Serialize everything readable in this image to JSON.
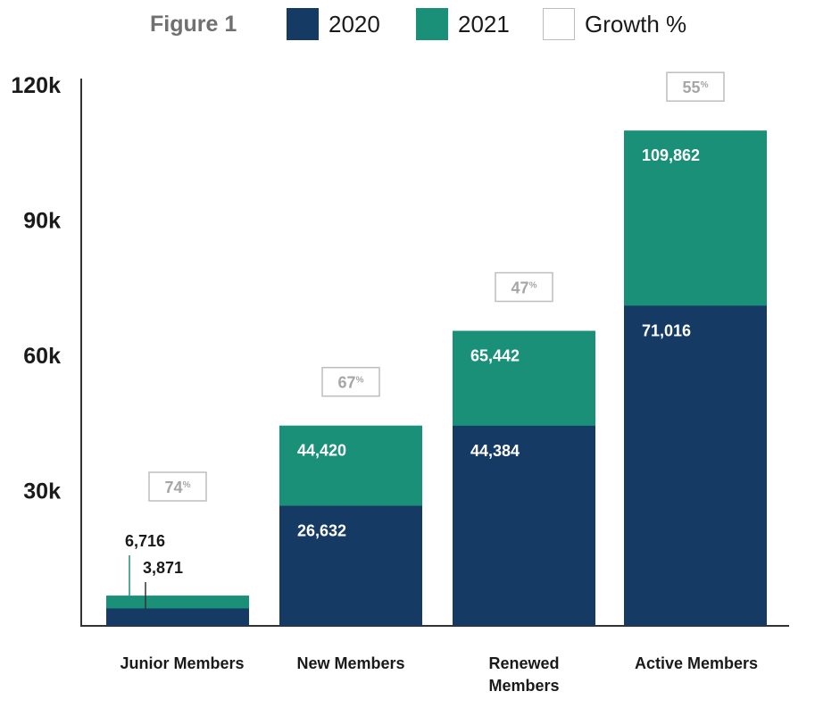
{
  "legend": {
    "figure_label": "Figure 1",
    "items": [
      {
        "label": "2020",
        "color": "#153a63"
      },
      {
        "label": "2021",
        "color": "#1a9079"
      },
      {
        "label": "Growth %",
        "color": "#ffffff"
      }
    ]
  },
  "chart_data": {
    "type": "bar",
    "title": "Figure 1",
    "xlabel": "",
    "ylabel": "",
    "ylim": [
      0,
      120000
    ],
    "yticks": [
      30000,
      60000,
      90000,
      120000
    ],
    "ytick_labels": [
      "30k",
      "60k",
      "90k",
      "120k"
    ],
    "categories": [
      "Junior Members",
      "New Members",
      "Renewed\nMembers",
      "Active Members"
    ],
    "series": [
      {
        "name": "2020",
        "color": "#153a63",
        "values": [
          3871,
          26632,
          44384,
          71016
        ],
        "labels": [
          "3,871",
          "26,632",
          "44,384",
          "71,016"
        ]
      },
      {
        "name": "2021",
        "color": "#1a9079",
        "values": [
          6716,
          44420,
          65442,
          109862
        ],
        "labels": [
          "6,716",
          "44,420",
          "65,442",
          "109,862"
        ]
      }
    ],
    "growth": {
      "name": "Growth %",
      "values": [
        74,
        67,
        47,
        55
      ],
      "labels": [
        "74",
        "67",
        "47",
        "55"
      ],
      "suffix": "%"
    },
    "grid": false,
    "legend_position": "top"
  }
}
